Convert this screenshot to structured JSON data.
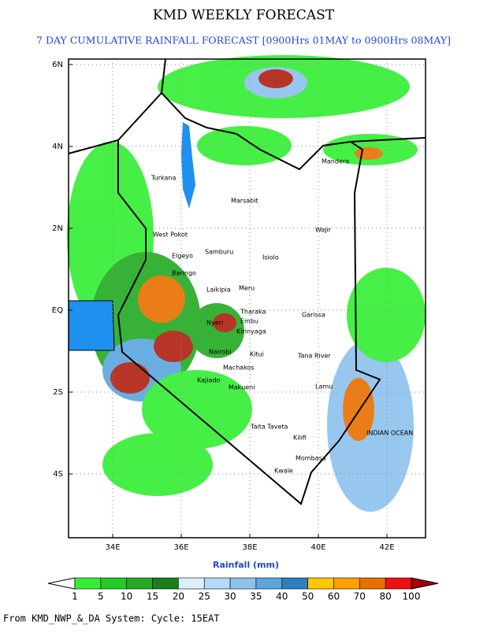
{
  "header": {
    "title": "KMD WEEKLY FORECAST",
    "subtitle": "7 DAY CUMULATIVE RAINFALL FORECAST [0900Hrs 01MAY to 0900Hrs 08MAY]"
  },
  "map": {
    "lat_labels": [
      "6N",
      "4N",
      "2N",
      "EQ",
      "2S",
      "4S"
    ],
    "lon_labels": [
      "34E",
      "36E",
      "38E",
      "40E",
      "42E"
    ],
    "places": [
      "Turkana",
      "Marsabit",
      "Mandera",
      "Wajir",
      "Isiolo",
      "Samburu",
      "West Pokot",
      "Elgeyo",
      "Baringo",
      "Laikipia",
      "Meru",
      "Tharaka",
      "Embu",
      "Kirinyaga",
      "Nyeri",
      "Nairobi",
      "Kitui",
      "Garissa",
      "Tana River",
      "Machakos",
      "Kajiado",
      "Makueni",
      "Lamu",
      "Taita Taveta",
      "Kilifi",
      "Mombasa",
      "Kwale",
      "INDIAN OCEAN"
    ]
  },
  "colorbar": {
    "label": "Rainfall (mm)",
    "ticks": [
      1,
      5,
      10,
      15,
      20,
      25,
      30,
      35,
      40,
      50,
      60,
      70,
      80,
      100
    ],
    "colors": [
      "#ffffff",
      "#33ee33",
      "#22cc22",
      "#22aa22",
      "#1a7f1a",
      "#dcefff",
      "#b4dafb",
      "#8cc2ee",
      "#5aa6de",
      "#2d7fbf",
      "#ffc800",
      "#ffa000",
      "#e87000",
      "#ee1010",
      "#a00000"
    ]
  },
  "footer": "From  KMD_NWP_&_DA System: Cycle: 15EAT"
}
